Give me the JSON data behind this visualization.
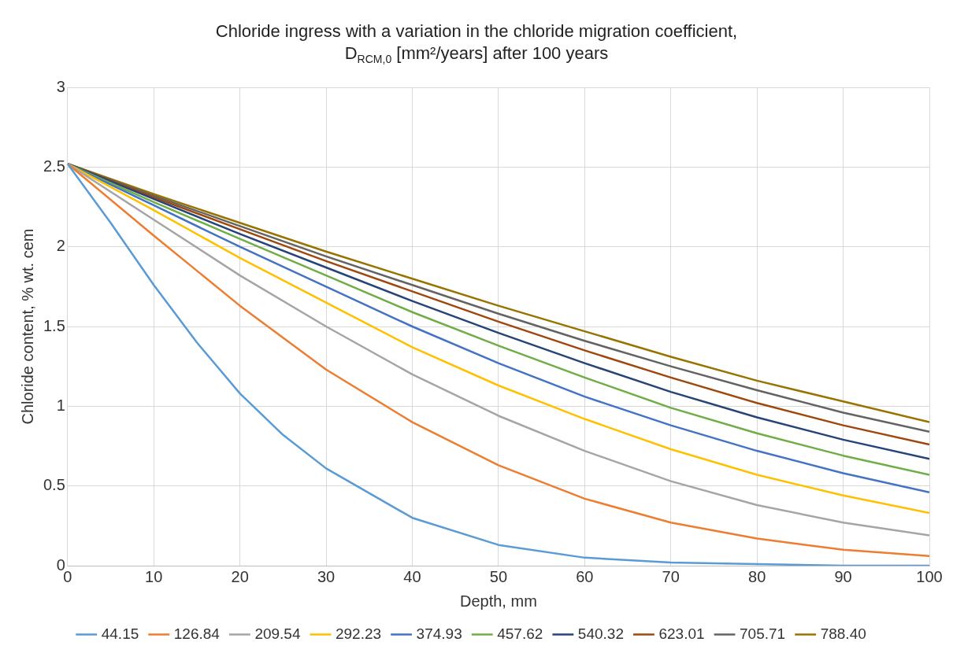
{
  "chart_data": {
    "type": "line",
    "title": "Chloride ingress with a variation in the chloride migration coefficient,\nD$_{RCM,0}$ [mm²/years] after 100 years",
    "xlabel": "Depth, mm",
    "ylabel": "Chloride content, % wt. cem",
    "x": [
      0,
      10,
      20,
      30,
      40,
      50,
      60,
      70,
      80,
      90,
      100
    ],
    "xlim": [
      0,
      100
    ],
    "xticks": [
      0,
      10,
      20,
      30,
      40,
      50,
      60,
      70,
      80,
      90,
      100
    ],
    "ylim": [
      0,
      3
    ],
    "yticks": [
      0,
      0.5,
      1,
      1.5,
      2,
      2.5,
      3
    ],
    "grid": true,
    "legend": "bottom",
    "marker": "none",
    "line_style": "solid",
    "series": [
      {
        "name": "44.15",
        "color": "#5b9bd5",
        "x": [
          0,
          5,
          10,
          15,
          20,
          25,
          30,
          40,
          50,
          60,
          70,
          80,
          90,
          100
        ],
        "values": [
          2.52,
          2.15,
          1.76,
          1.4,
          1.08,
          0.82,
          0.61,
          0.3,
          0.13,
          0.05,
          0.02,
          0.01,
          0,
          0
        ]
      },
      {
        "name": "126.84",
        "color": "#ed7d31",
        "values": [
          2.52,
          2.07,
          1.63,
          1.23,
          0.9,
          0.63,
          0.42,
          0.27,
          0.17,
          0.1,
          0.06
        ]
      },
      {
        "name": "209.54",
        "color": "#a5a5a5",
        "values": [
          2.52,
          2.17,
          1.82,
          1.5,
          1.2,
          0.94,
          0.72,
          0.53,
          0.38,
          0.27,
          0.19
        ]
      },
      {
        "name": "292.23",
        "color": "#ffc000",
        "values": [
          2.52,
          2.23,
          1.93,
          1.65,
          1.37,
          1.13,
          0.92,
          0.73,
          0.57,
          0.44,
          0.33
        ]
      },
      {
        "name": "374.93",
        "color": "#4472c4",
        "values": [
          2.52,
          2.26,
          2.0,
          1.75,
          1.5,
          1.27,
          1.06,
          0.88,
          0.72,
          0.58,
          0.46
        ]
      },
      {
        "name": "457.62",
        "color": "#70ad47",
        "values": [
          2.52,
          2.28,
          2.05,
          1.82,
          1.59,
          1.38,
          1.18,
          0.99,
          0.83,
          0.69,
          0.57
        ]
      },
      {
        "name": "540.32",
        "color": "#264478",
        "values": [
          2.52,
          2.3,
          2.08,
          1.87,
          1.66,
          1.46,
          1.27,
          1.09,
          0.93,
          0.79,
          0.67
        ]
      },
      {
        "name": "623.01",
        "color": "#9e480e",
        "values": [
          2.52,
          2.31,
          2.11,
          1.91,
          1.72,
          1.53,
          1.35,
          1.18,
          1.02,
          0.88,
          0.76
        ]
      },
      {
        "name": "705.71",
        "color": "#636363",
        "values": [
          2.52,
          2.32,
          2.13,
          1.94,
          1.76,
          1.58,
          1.41,
          1.25,
          1.1,
          0.96,
          0.84
        ]
      },
      {
        "name": "788.40",
        "color": "#997300",
        "values": [
          2.52,
          2.33,
          2.15,
          1.97,
          1.8,
          1.63,
          1.47,
          1.31,
          1.16,
          1.03,
          0.9
        ]
      }
    ]
  }
}
